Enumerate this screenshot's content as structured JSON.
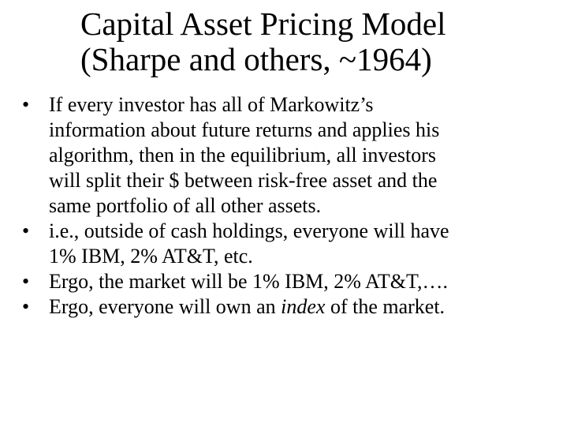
{
  "slide": {
    "title_lines": [
      "Capital Asset Pricing Model",
      "(Sharpe and others, ~1964)"
    ],
    "bullet_symbol": "•",
    "bullets": [
      {
        "lines": [
          "If every investor has all of Markowitz’s",
          "information about future returns and applies his",
          "algorithm, then in the equilibrium, all investors",
          "will split their $ between risk-free asset and the",
          "same portfolio of all other assets."
        ]
      },
      {
        "lines": [
          "i.e., outside of cash holdings, everyone will have",
          "1% IBM, 2% AT&T, etc."
        ]
      },
      {
        "lines": [
          "Ergo, the market will be 1% IBM, 2% AT&T,…."
        ]
      },
      {
        "before": "Ergo, everyone will own an ",
        "emphasis": "index",
        "after": " of the market."
      }
    ]
  }
}
